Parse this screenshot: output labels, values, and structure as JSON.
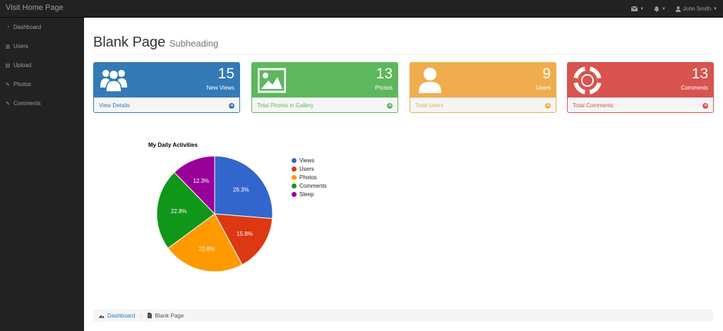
{
  "topbar": {
    "brand": "Visit Home Page",
    "user_name": "John Smith",
    "icons": [
      "envelope-icon",
      "bell-icon",
      "user-icon"
    ]
  },
  "sidebar": {
    "items": [
      {
        "label": "Dashboard",
        "icon": "dashboard-icon"
      },
      {
        "label": "Users",
        "icon": "bar-chart-icon"
      },
      {
        "label": "Upload",
        "icon": "table-icon"
      },
      {
        "label": "Photos",
        "icon": "edit-icon"
      },
      {
        "label": "Comments",
        "icon": "edit-icon"
      }
    ]
  },
  "header": {
    "title": "Blank Page",
    "subtitle": "Subheading"
  },
  "panels": [
    {
      "value": "15",
      "caption": "New Views",
      "footer": "View Details",
      "color": "#337ab7",
      "icon": "users-icon"
    },
    {
      "value": "13",
      "caption": "Photos",
      "footer": "Total Photos in Gallery",
      "color": "#5cb85c",
      "icon": "picture-icon"
    },
    {
      "value": "9",
      "caption": "Users",
      "footer": "Total Users",
      "color": "#f0ad4e",
      "icon": "user-icon"
    },
    {
      "value": "13",
      "caption": "Comments",
      "footer": "Total Comments",
      "color": "#d9534f",
      "icon": "life-ring-icon"
    }
  ],
  "chart_data": {
    "type": "pie",
    "title": "My Daily Activities",
    "legend_position": "right",
    "categories": [
      "Views",
      "Users",
      "Photos",
      "Comments",
      "Sleep"
    ],
    "values": [
      26.3,
      15.8,
      22.8,
      22.8,
      12.3
    ],
    "labels": [
      "26.3%",
      "15.8%",
      "22.8%",
      "22.8%",
      "12.3%"
    ],
    "colors": [
      "#3366cc",
      "#dc3912",
      "#ff9900",
      "#109618",
      "#990099"
    ]
  },
  "breadcrumb": {
    "home": "Dashboard",
    "current": "Blank Page"
  }
}
